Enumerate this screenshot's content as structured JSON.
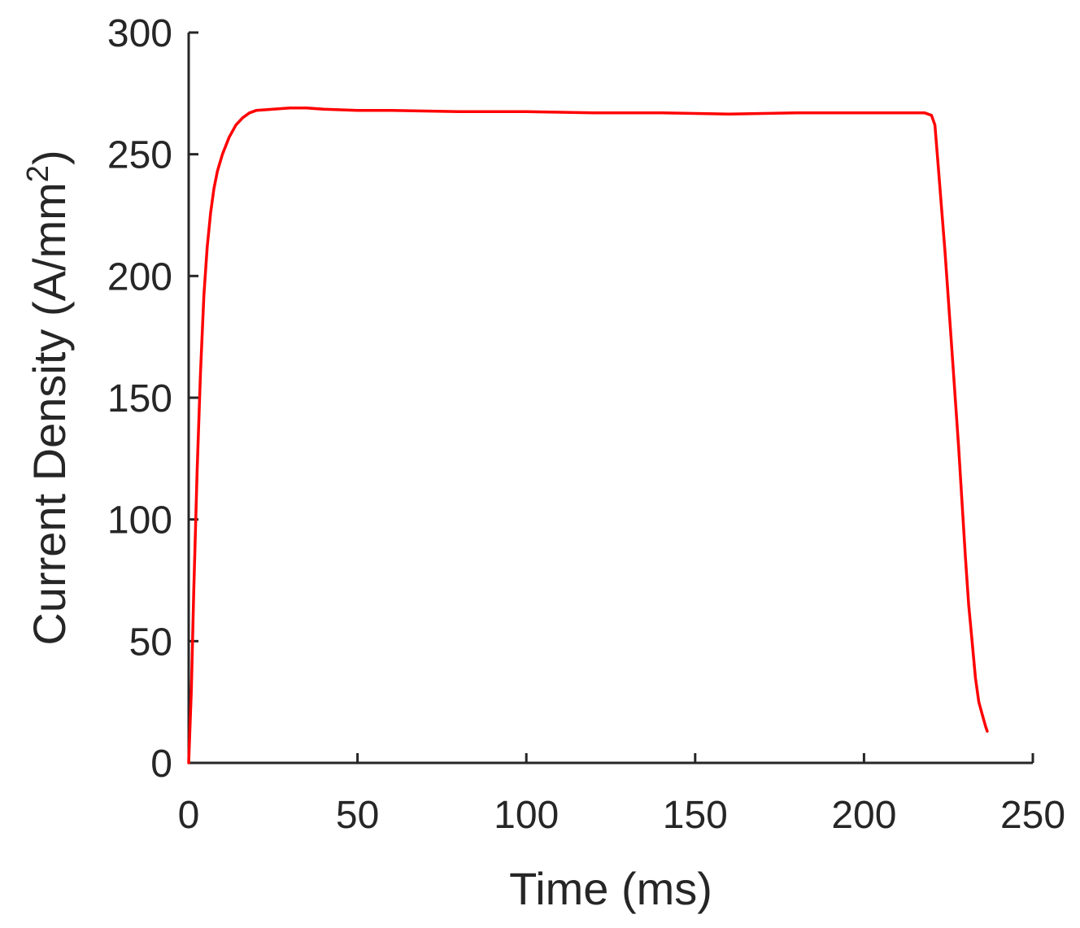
{
  "chart_data": {
    "type": "line",
    "title": "",
    "xlabel": "Time (ms)",
    "ylabel_main": "Current Density (A/mm",
    "ylabel_sup": "2",
    "ylabel_close": ")",
    "xlim": [
      0,
      250
    ],
    "ylim": [
      0,
      300
    ],
    "x_ticks": [
      0,
      50,
      100,
      150,
      200,
      250
    ],
    "y_ticks": [
      0,
      50,
      100,
      150,
      200,
      250,
      300
    ],
    "x_tick_labels": [
      "0",
      "50",
      "100",
      "150",
      "200",
      "250"
    ],
    "y_tick_labels": [
      "0",
      "50",
      "100",
      "150",
      "200",
      "250",
      "300"
    ],
    "grid": false,
    "legend": "none",
    "line_color": "#ff0000",
    "series": [
      {
        "x": [
          0,
          0.8,
          1.5,
          2.5,
          3.5,
          4.5,
          5.5,
          6.5,
          7.5,
          8.5,
          10,
          12,
          14,
          16,
          18,
          20,
          25,
          30,
          35,
          40,
          50,
          60,
          80,
          100,
          120,
          140,
          160,
          180,
          200,
          210,
          218,
          220,
          221,
          222,
          224,
          226,
          228,
          230,
          231,
          232,
          233,
          234,
          235,
          236,
          236.5
        ],
        "y": [
          0,
          30,
          70,
          120,
          160,
          192,
          212,
          226,
          236,
          243,
          250,
          257,
          262,
          265,
          267,
          268,
          268.5,
          269,
          269,
          268.5,
          268,
          268,
          267.5,
          267.5,
          267,
          267,
          266.5,
          267,
          267,
          267,
          267,
          266,
          262,
          245,
          210,
          170,
          130,
          85,
          65,
          50,
          35,
          25,
          20,
          15,
          13
        ]
      }
    ]
  }
}
